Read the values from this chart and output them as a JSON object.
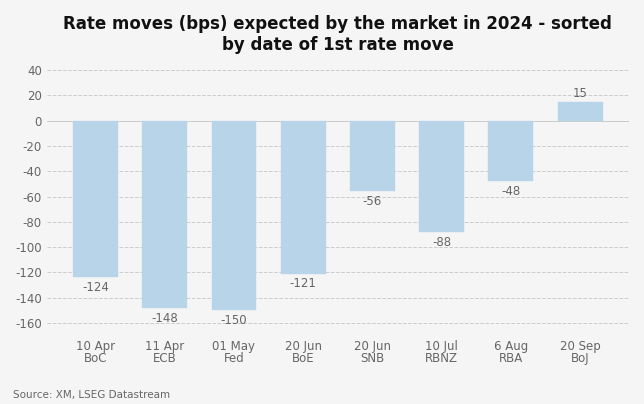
{
  "title": "Rate moves (bps) expected by the market in 2024 - sorted\nby date of 1st rate move",
  "date_labels": [
    "10 Apr",
    "11 Apr",
    "01 May",
    "20 Jun",
    "20 Jun",
    "10 Jul",
    "6 Aug",
    "20 Sep"
  ],
  "inst_labels": [
    "BoC",
    "ECB",
    "Fed",
    "BoE",
    "SNB",
    "RBNZ",
    "RBA",
    "BoJ"
  ],
  "values": [
    -124,
    -148,
    -150,
    -121,
    -56,
    -88,
    -48,
    15
  ],
  "bar_color": "#b8d4e8",
  "bar_edge_color": "#b8d4e8",
  "label_color": "#666666",
  "title_color": "#111111",
  "background_color": "#f5f5f5",
  "grid_color": "#cccccc",
  "ylim": [
    -165,
    45
  ],
  "yticks": [
    -160,
    -140,
    -120,
    -100,
    -80,
    -60,
    -40,
    -20,
    0,
    20,
    40
  ],
  "source_text": "Source: XM, LSEG Datastream",
  "title_fontsize": 12,
  "label_fontsize": 8.5,
  "tick_fontsize": 8.5,
  "source_fontsize": 7.5
}
